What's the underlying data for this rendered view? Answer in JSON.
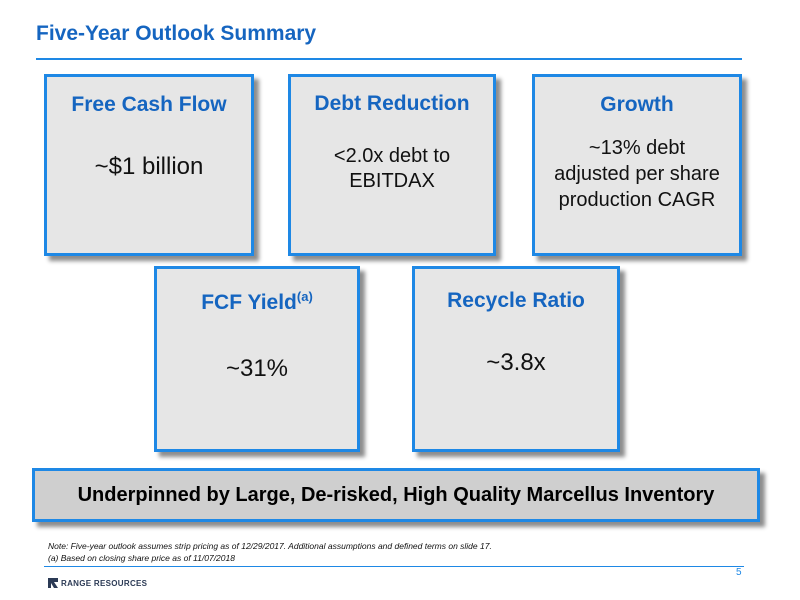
{
  "header": {
    "title": "Five-Year Outlook Summary"
  },
  "cards": {
    "free_cash_flow": {
      "title": "Free Cash Flow",
      "value": "~$1 billion"
    },
    "debt_reduction": {
      "title": "Debt Reduction",
      "value_line1": "<2.0x debt to",
      "value_line2": "EBITDAX"
    },
    "growth": {
      "title": "Growth",
      "value_line1": "~13% debt",
      "value_line2": "adjusted per share",
      "value_line3": "production CAGR"
    },
    "fcf_yield": {
      "title": "FCF Yield",
      "superscript": "(a)",
      "value": "~31%"
    },
    "recycle_ratio": {
      "title": "Recycle Ratio",
      "value": "~3.8x"
    }
  },
  "banner": {
    "text": "Underpinned by Large, De-risked, High Quality Marcellus Inventory"
  },
  "footer": {
    "note_line1": "Note: Five-year outlook assumes strip pricing as of 12/29/2017.  Additional assumptions and defined terms on slide 17.",
    "note_line2": "(a) Based on closing share price as of 11/07/2018",
    "page_number": "5",
    "logo_text": "RANGE RESOURCES",
    "logo_icon": "range-resources-logo-icon"
  },
  "colors": {
    "accent_blue": "#1e88e5",
    "title_blue": "#1565c0",
    "card_fill": "#e6e6e6",
    "banner_fill": "#cfcfcf"
  }
}
